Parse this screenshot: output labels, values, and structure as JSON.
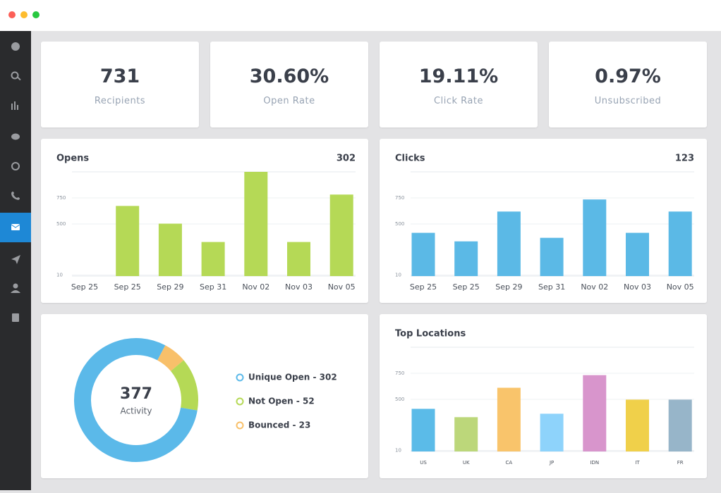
{
  "stats": [
    {
      "value": "731",
      "label": "Recipients"
    },
    {
      "value": "30.60%",
      "label": "Open Rate"
    },
    {
      "value": "19.11%",
      "label": "Click Rate"
    },
    {
      "value": "0.97%",
      "label": "Unsubscribed"
    }
  ],
  "chart_data": [
    {
      "type": "bar",
      "title": "Opens",
      "total": "302",
      "categories": [
        "Sep 25",
        "Sep 25",
        "Sep 29",
        "Sep 31",
        "Nov 02",
        "Nov 03",
        "Nov 05"
      ],
      "values": [
        0,
        673,
        503,
        327,
        1000,
        327,
        782
      ],
      "color": "#b5d956",
      "ylim": [
        0,
        1000
      ],
      "yticks": [
        10,
        500,
        750
      ],
      "grid": true
    },
    {
      "type": "bar",
      "title": "Clicks",
      "total": "123",
      "categories": [
        "Sep 25",
        "Sep 25",
        "Sep 29",
        "Sep 31",
        "Nov 02",
        "Nov 03",
        "Nov 05"
      ],
      "values": [
        415,
        333,
        619,
        367,
        735,
        415,
        619
      ],
      "color": "#5bb9e6",
      "ylim": [
        0,
        1000
      ],
      "yticks": [
        10,
        500,
        750
      ],
      "grid": true
    },
    {
      "type": "donut",
      "center_value": "377",
      "center_label": "Activity",
      "values": [
        302,
        52,
        23
      ],
      "value_labels": [
        "Unique Open - 302",
        "Not Open - 52",
        "Bounced - 23"
      ],
      "colors": [
        "#5bb9e9",
        "#b5d956",
        "#f8c06a"
      ]
    },
    {
      "type": "bar",
      "title": "Top Locations",
      "categories": [
        "US",
        "UK",
        "CA",
        "JP",
        "IDN",
        "IT",
        "FR"
      ],
      "values": [
        409,
        329,
        611,
        362,
        732,
        497,
        497
      ],
      "colors": [
        "#5bbbe8",
        "#bcd77a",
        "#f9c46b",
        "#8ed3fb",
        "#d895cc",
        "#f0d04a",
        "#97b5c9"
      ],
      "ylim": [
        0,
        1000
      ],
      "yticks": [
        10,
        500,
        750
      ],
      "grid": true
    }
  ]
}
